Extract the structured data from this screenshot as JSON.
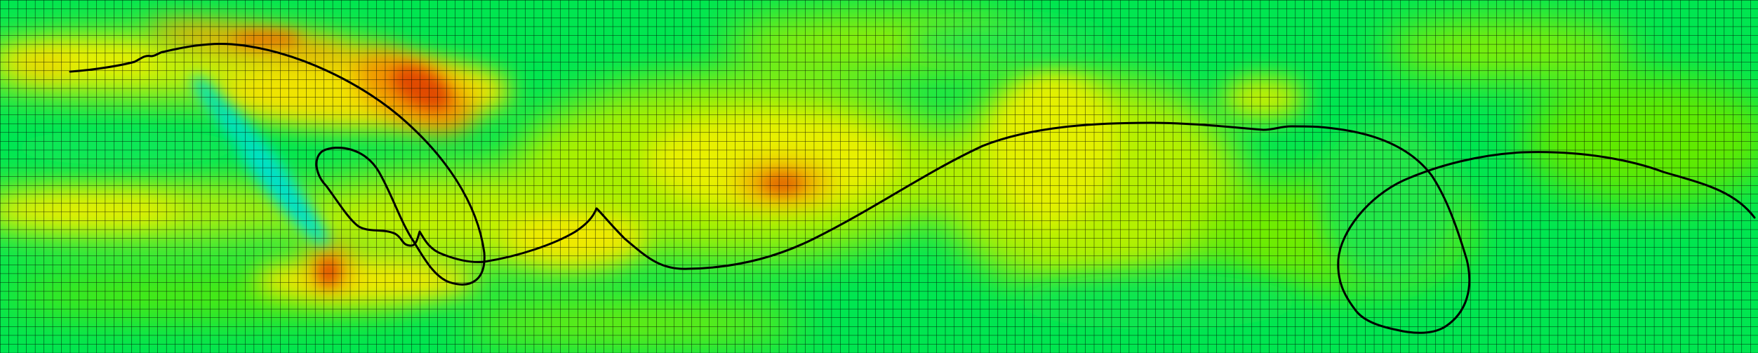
{
  "field": {
    "colormap": [
      "#00e0c8",
      "#00e64a",
      "#9ff000",
      "#f0f000",
      "#f0a000",
      "#e03c00"
    ],
    "base_color": "#00e650",
    "grid_line_color": "#000000",
    "curve_color": "#000000"
  }
}
